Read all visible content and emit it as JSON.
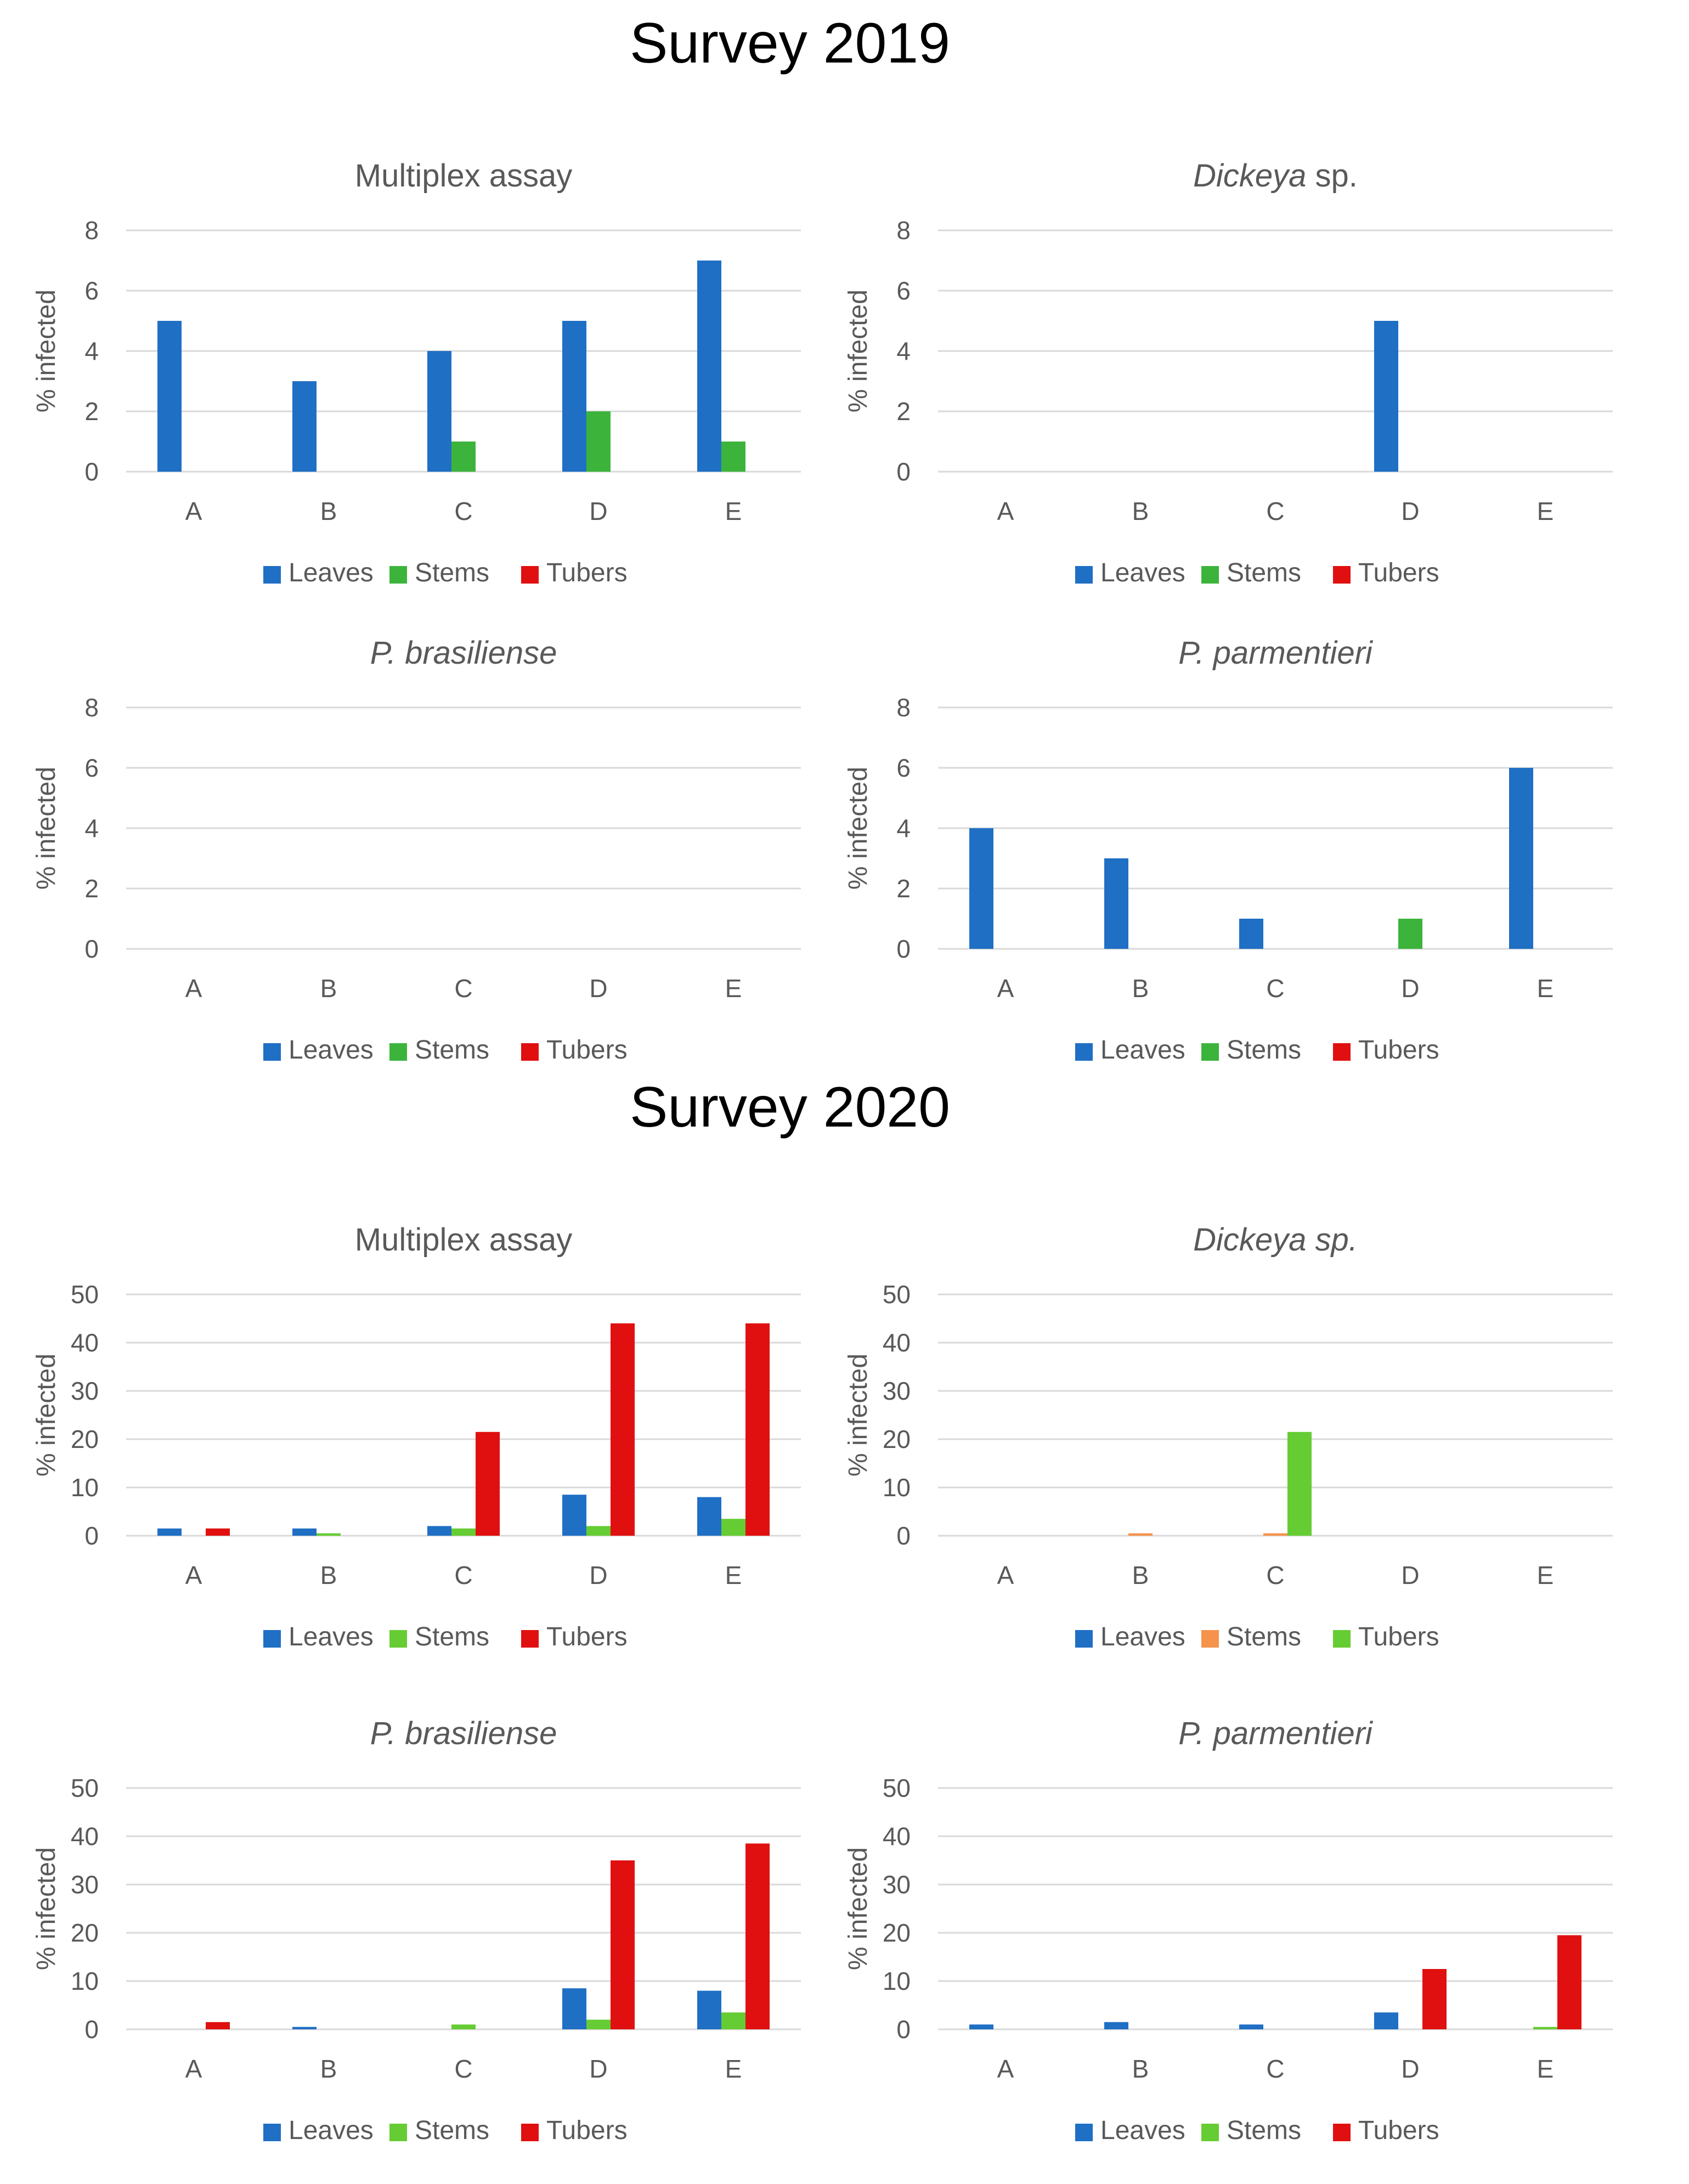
{
  "sections": [
    {
      "title": "Survey 2019"
    },
    {
      "title": "Survey 2020"
    }
  ],
  "legend_names": [
    "Leaves",
    "Stems",
    "Tubers"
  ],
  "colors": {
    "blue": "#1F6FC5",
    "green2019": "#3CB43C",
    "red": "#E01010",
    "lightgreen": "#66CC33",
    "orange": "#F5924C",
    "grid": "#D9D9D9",
    "text": "#595959"
  },
  "chart_data": [
    {
      "type": "bar",
      "survey": "Survey 2019",
      "title": "Multiplex assay",
      "title_italic": "",
      "title_suffix": "",
      "ylabel": "% infected",
      "ylim": [
        0,
        8
      ],
      "yticks": [
        0,
        2,
        4,
        6,
        8
      ],
      "categories": [
        "A",
        "B",
        "C",
        "D",
        "E"
      ],
      "series": [
        {
          "name": "Leaves",
          "color": "#1F6FC5",
          "values": [
            5,
            3,
            4,
            5,
            7
          ]
        },
        {
          "name": "Stems",
          "color": "#3CB43C",
          "values": [
            0,
            0,
            1,
            2,
            1
          ]
        },
        {
          "name": "Tubers",
          "color": "#E01010",
          "values": [
            0,
            0,
            0,
            0,
            0
          ]
        }
      ],
      "legend": "bottom"
    },
    {
      "type": "bar",
      "survey": "Survey 2019",
      "title": "",
      "title_italic": "Dickeya",
      "title_suffix": " sp.",
      "ylabel": "% infected",
      "ylim": [
        0,
        8
      ],
      "yticks": [
        0,
        2,
        4,
        6,
        8
      ],
      "categories": [
        "A",
        "B",
        "C",
        "D",
        "E"
      ],
      "series": [
        {
          "name": "Leaves",
          "color": "#1F6FC5",
          "values": [
            0,
            0,
            0,
            5,
            0
          ]
        },
        {
          "name": "Stems",
          "color": "#3CB43C",
          "values": [
            0,
            0,
            0,
            0,
            0
          ]
        },
        {
          "name": "Tubers",
          "color": "#E01010",
          "values": [
            0,
            0,
            0,
            0,
            0
          ]
        }
      ],
      "legend": "bottom"
    },
    {
      "type": "bar",
      "survey": "Survey 2019",
      "title": "",
      "title_italic": "P. brasiliense",
      "title_suffix": "",
      "ylabel": "% infected",
      "ylim": [
        0,
        8
      ],
      "yticks": [
        0,
        2,
        4,
        6,
        8
      ],
      "categories": [
        "A",
        "B",
        "C",
        "D",
        "E"
      ],
      "series": [
        {
          "name": "Leaves",
          "color": "#1F6FC5",
          "values": [
            0,
            0,
            0,
            0,
            0
          ]
        },
        {
          "name": "Stems",
          "color": "#3CB43C",
          "values": [
            0,
            0,
            0,
            0,
            0
          ]
        },
        {
          "name": "Tubers",
          "color": "#E01010",
          "values": [
            0,
            0,
            0,
            0,
            0
          ]
        }
      ],
      "legend": "bottom"
    },
    {
      "type": "bar",
      "survey": "Survey 2019",
      "title": "",
      "title_italic": "P. parmentieri",
      "title_suffix": "",
      "ylabel": "% infected",
      "ylim": [
        0,
        8
      ],
      "yticks": [
        0,
        2,
        4,
        6,
        8
      ],
      "categories": [
        "A",
        "B",
        "C",
        "D",
        "E"
      ],
      "series": [
        {
          "name": "Leaves",
          "color": "#1F6FC5",
          "values": [
            4,
            3,
            1,
            0,
            6
          ]
        },
        {
          "name": "Stems",
          "color": "#3CB43C",
          "values": [
            0,
            0,
            0,
            1,
            0
          ]
        },
        {
          "name": "Tubers",
          "color": "#E01010",
          "values": [
            0,
            0,
            0,
            0,
            0
          ]
        }
      ],
      "legend": "bottom"
    },
    {
      "type": "bar",
      "survey": "Survey 2020",
      "title": "Multiplex assay",
      "title_italic": "",
      "title_suffix": "",
      "ylabel": "% infected",
      "ylim": [
        0,
        50
      ],
      "yticks": [
        0,
        10,
        20,
        30,
        40,
        50
      ],
      "categories": [
        "A",
        "B",
        "C",
        "D",
        "E"
      ],
      "series": [
        {
          "name": "Leaves",
          "color": "#1F6FC5",
          "values": [
            1.5,
            1.5,
            2,
            8.5,
            8
          ]
        },
        {
          "name": "Stems",
          "color": "#66CC33",
          "values": [
            0,
            0.5,
            1.5,
            2,
            3.5
          ]
        },
        {
          "name": "Tubers",
          "color": "#E01010",
          "values": [
            1.5,
            0,
            21.5,
            44,
            44
          ]
        }
      ],
      "legend": "bottom"
    },
    {
      "type": "bar",
      "survey": "Survey 2020",
      "title": "",
      "title_italic": "Dickeya sp.",
      "title_suffix": "",
      "ylabel": "% infected",
      "ylim": [
        0,
        50
      ],
      "yticks": [
        0,
        10,
        20,
        30,
        40,
        50
      ],
      "categories": [
        "A",
        "B",
        "C",
        "D",
        "E"
      ],
      "series": [
        {
          "name": "Leaves",
          "color": "#1F6FC5",
          "values": [
            0,
            0,
            0,
            0,
            0
          ]
        },
        {
          "name": "Stems",
          "color": "#F5924C",
          "values": [
            0,
            0.5,
            0.5,
            0,
            0
          ]
        },
        {
          "name": "Tubers",
          "color": "#66CC33",
          "values": [
            0,
            0,
            21.5,
            0,
            0
          ]
        }
      ],
      "legend": "bottom"
    },
    {
      "type": "bar",
      "survey": "Survey 2020",
      "title": "",
      "title_italic": "P. brasiliense",
      "title_suffix": "",
      "ylabel": "% infected",
      "ylim": [
        0,
        50
      ],
      "yticks": [
        0,
        10,
        20,
        30,
        40,
        50
      ],
      "categories": [
        "A",
        "B",
        "C",
        "D",
        "E"
      ],
      "series": [
        {
          "name": "Leaves",
          "color": "#1F6FC5",
          "values": [
            0,
            0.5,
            0,
            8.5,
            8
          ]
        },
        {
          "name": "Stems",
          "color": "#66CC33",
          "values": [
            0,
            0,
            1,
            2,
            3.5
          ]
        },
        {
          "name": "Tubers",
          "color": "#E01010",
          "values": [
            1.5,
            0,
            0,
            35,
            38.5
          ]
        }
      ],
      "legend": "bottom"
    },
    {
      "type": "bar",
      "survey": "Survey 2020",
      "title": "",
      "title_italic": "P. parmentieri",
      "title_suffix": "",
      "ylabel": "% infected",
      "ylim": [
        0,
        50
      ],
      "yticks": [
        0,
        10,
        20,
        30,
        40,
        50
      ],
      "categories": [
        "A",
        "B",
        "C",
        "D",
        "E"
      ],
      "series": [
        {
          "name": "Leaves",
          "color": "#1F6FC5",
          "values": [
            1,
            1.5,
            1,
            3.5,
            0
          ]
        },
        {
          "name": "Stems",
          "color": "#66CC33",
          "values": [
            0,
            0,
            0,
            0,
            0.5
          ]
        },
        {
          "name": "Tubers",
          "color": "#E01010",
          "values": [
            0,
            0,
            0,
            12.5,
            19.5
          ]
        }
      ],
      "legend": "bottom"
    }
  ]
}
